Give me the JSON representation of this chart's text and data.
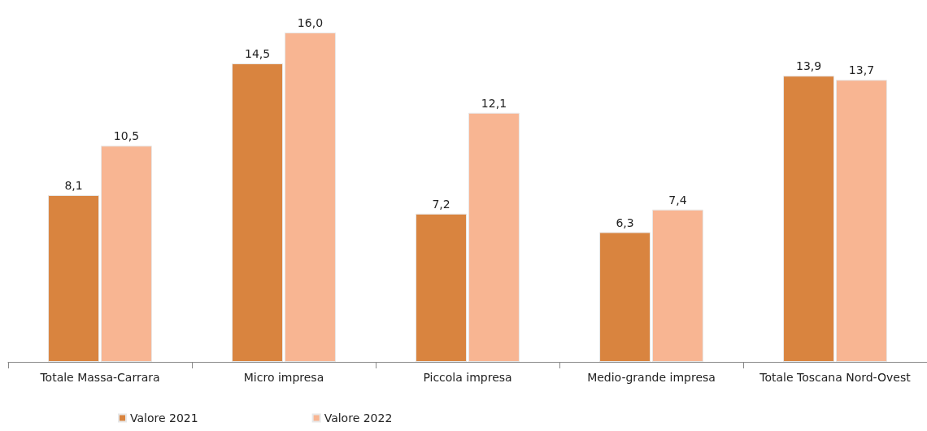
{
  "chart_data": {
    "type": "bar",
    "categories": [
      "Totale Massa-Carrara",
      "Micro impresa",
      "Piccola impresa",
      "Medio-grande impresa",
      "Totale Toscana Nord-Ovest"
    ],
    "series": [
      {
        "name": "Valore 2021",
        "color": "#d9843f",
        "values": [
          8.1,
          14.5,
          7.2,
          6.3,
          13.9
        ],
        "value_labels": [
          "8,1",
          "14,5",
          "7,2",
          "6,3",
          "13,9"
        ]
      },
      {
        "name": "Valore 2022",
        "color": "#f8b592",
        "values": [
          10.5,
          16.0,
          12.1,
          7.4,
          13.7
        ],
        "value_labels": [
          "10,5",
          "16,0",
          "12,1",
          "7,4",
          "13,7"
        ]
      }
    ],
    "legend": "bottom left",
    "grid": false
  }
}
